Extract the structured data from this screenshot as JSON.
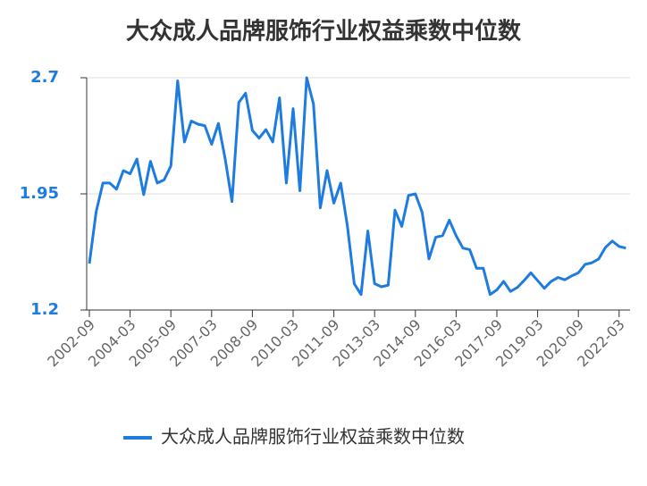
{
  "chart_data": {
    "type": "line",
    "title": "大众成人品牌服饰行业权益乘数中位数",
    "categories": [
      "2002-09",
      null,
      null,
      null,
      null,
      null,
      "2004-03",
      null,
      null,
      null,
      null,
      null,
      "2005-09",
      null,
      null,
      null,
      null,
      null,
      "2007-03",
      null,
      null,
      null,
      null,
      null,
      "2008-09",
      null,
      null,
      null,
      null,
      null,
      "2010-03",
      null,
      null,
      null,
      null,
      null,
      "2011-09",
      null,
      null,
      null,
      null,
      null,
      "2013-03",
      null,
      null,
      null,
      null,
      null,
      "2014-09",
      null,
      null,
      null,
      null,
      null,
      "2016-03",
      null,
      null,
      null,
      null,
      null,
      "2017-09",
      null,
      null,
      null,
      null,
      null,
      "2019-03",
      null,
      null,
      null,
      null,
      null,
      "2020-09",
      null,
      null,
      null,
      null,
      null,
      "2022-03",
      null
    ],
    "series": [
      {
        "name": "大众成人品牌服饰行业权益乘数中位数",
        "color": "#1e7be0",
        "values": [
          1.5,
          1.835,
          2.02,
          2.02,
          1.98,
          2.1,
          2.08,
          2.175,
          1.945,
          2.16,
          2.02,
          2.04,
          2.13,
          2.68,
          2.285,
          2.42,
          2.4,
          2.39,
          2.27,
          2.405,
          2.175,
          1.9,
          2.54,
          2.6,
          2.36,
          2.31,
          2.365,
          2.285,
          2.57,
          2.02,
          2.5,
          1.97,
          2.7,
          2.53,
          1.86,
          2.1,
          1.89,
          2.02,
          1.74,
          1.37,
          1.3,
          1.71,
          1.37,
          1.35,
          1.36,
          1.845,
          1.74,
          1.94,
          1.95,
          1.83,
          1.53,
          1.67,
          1.68,
          1.78,
          1.68,
          1.6,
          1.59,
          1.47,
          1.47,
          1.3,
          1.33,
          1.385,
          1.32,
          1.345,
          1.39,
          1.44,
          1.39,
          1.34,
          1.385,
          1.41,
          1.395,
          1.42,
          1.44,
          1.495,
          1.505,
          1.53,
          1.605,
          1.645,
          1.61,
          1.6
        ]
      }
    ],
    "ylim": [
      1.2,
      2.7
    ],
    "yticks": [
      1.2,
      1.95,
      2.7
    ],
    "grid": true,
    "legend": "bottom"
  }
}
